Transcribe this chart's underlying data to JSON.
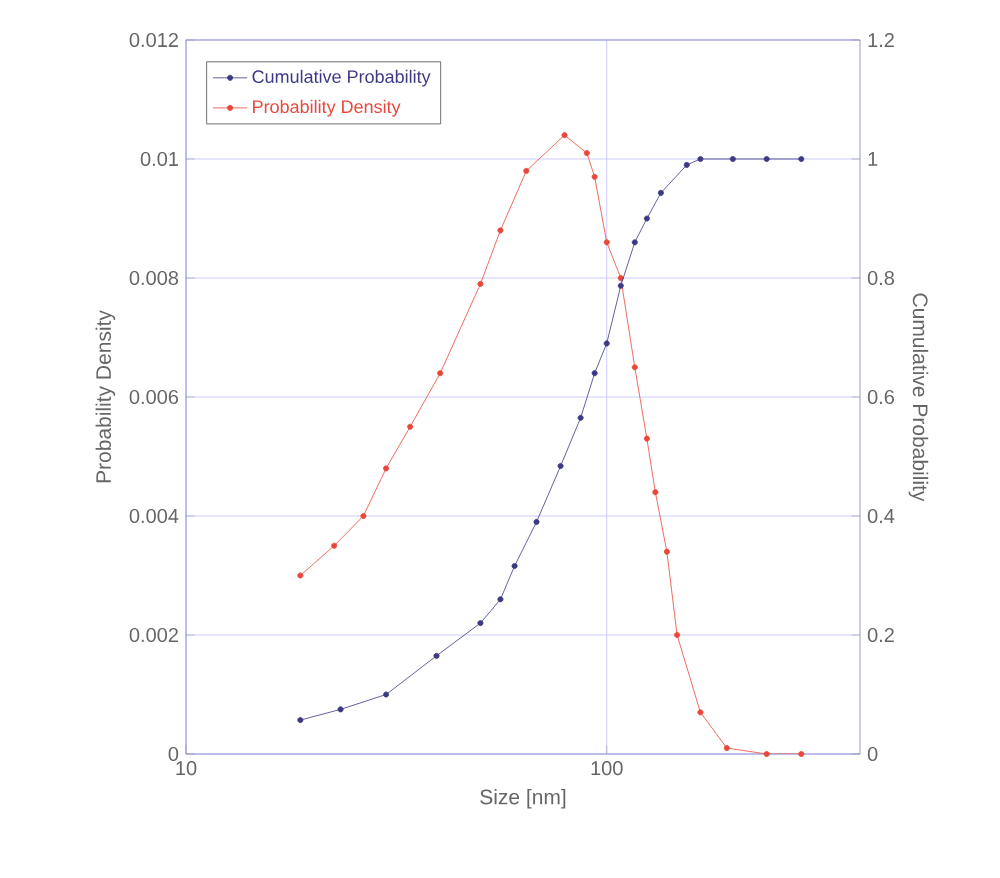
{
  "chart_data": {
    "type": "line",
    "xlabel": "Size [nm]",
    "ylabel": "Probability Density",
    "y2label": "Cumulative Probability",
    "log": "x",
    "grid": true,
    "legend": "top left",
    "marker": "circle",
    "xlim": [
      10,
      400
    ],
    "xticks": [
      10,
      100
    ],
    "ylim": [
      0,
      0.012
    ],
    "yticks": [
      0,
      0.002,
      0.004,
      0.006,
      0.008,
      0.01,
      0.012
    ],
    "y2lim": [
      0,
      1.2
    ],
    "y2ticks": [
      0,
      0.2,
      0.4,
      0.6,
      0.8,
      1,
      1.2
    ],
    "series": [
      {
        "name": "Cumulative Probability",
        "color": "#3d3a85",
        "axis": "y2",
        "x": [
          18.7,
          23.3,
          29.9,
          39.4,
          50.1,
          55.9,
          60.4,
          68.1,
          77.7,
          86.7,
          93.6,
          100,
          108,
          116.6,
          124.6,
          134.5,
          155,
          167,
          199.5,
          240,
          290
        ],
        "values": [
          0.057,
          0.075,
          0.1,
          0.165,
          0.22,
          0.26,
          0.316,
          0.39,
          0.484,
          0.565,
          0.64,
          0.69,
          0.787,
          0.86,
          0.9,
          0.943,
          0.99,
          1,
          1,
          1,
          1
        ]
      },
      {
        "name": "Probability Density",
        "color": "#e8473a",
        "x": [
          18.7,
          22.5,
          26.4,
          29.9,
          34.1,
          40.2,
          50.1,
          55.9,
          64.4,
          79.4,
          89.7,
          93.6,
          100,
          108,
          116.6,
          124.6,
          130.5,
          139,
          147,
          167,
          193,
          240,
          290
        ],
        "values": [
          0.003,
          0.0035,
          0.004,
          0.0048,
          0.0055,
          0.0064,
          0.0079,
          0.0088,
          0.0098,
          0.0104,
          0.0101,
          0.0097,
          0.0086,
          0.008,
          0.0065,
          0.0053,
          0.0044,
          0.0034,
          0.002,
          0.0007,
          0.0001,
          0,
          0
        ]
      }
    ]
  }
}
